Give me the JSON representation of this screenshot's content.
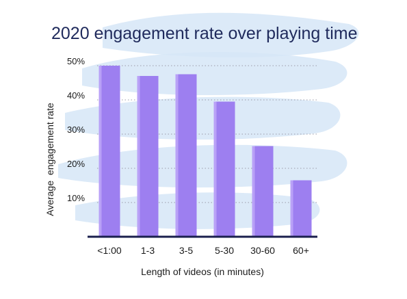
{
  "chart_data": {
    "type": "bar",
    "title": "2020 engagement rate over playing time",
    "xlabel": "Length of videos (in minutes)",
    "ylabel": "Average  engagement rate",
    "categories": [
      "<1:00",
      "1-3",
      "3-5",
      "5-30",
      "30-60",
      "60+"
    ],
    "values": [
      50,
      47,
      47.5,
      39.5,
      26.5,
      16.5
    ],
    "yticks": [
      "10%",
      "20%",
      "30%",
      "40%",
      "50%"
    ],
    "ylim": [
      0,
      50
    ],
    "grid": true,
    "legend": "none",
    "colors": {
      "bar": "#9d7ff0",
      "bar_highlight": "#b9a1f7",
      "title": "#1f2a5c",
      "axis": "#1a1f4d",
      "grid": "#9a9aa8",
      "background_brush": "#d6e6f7"
    }
  }
}
